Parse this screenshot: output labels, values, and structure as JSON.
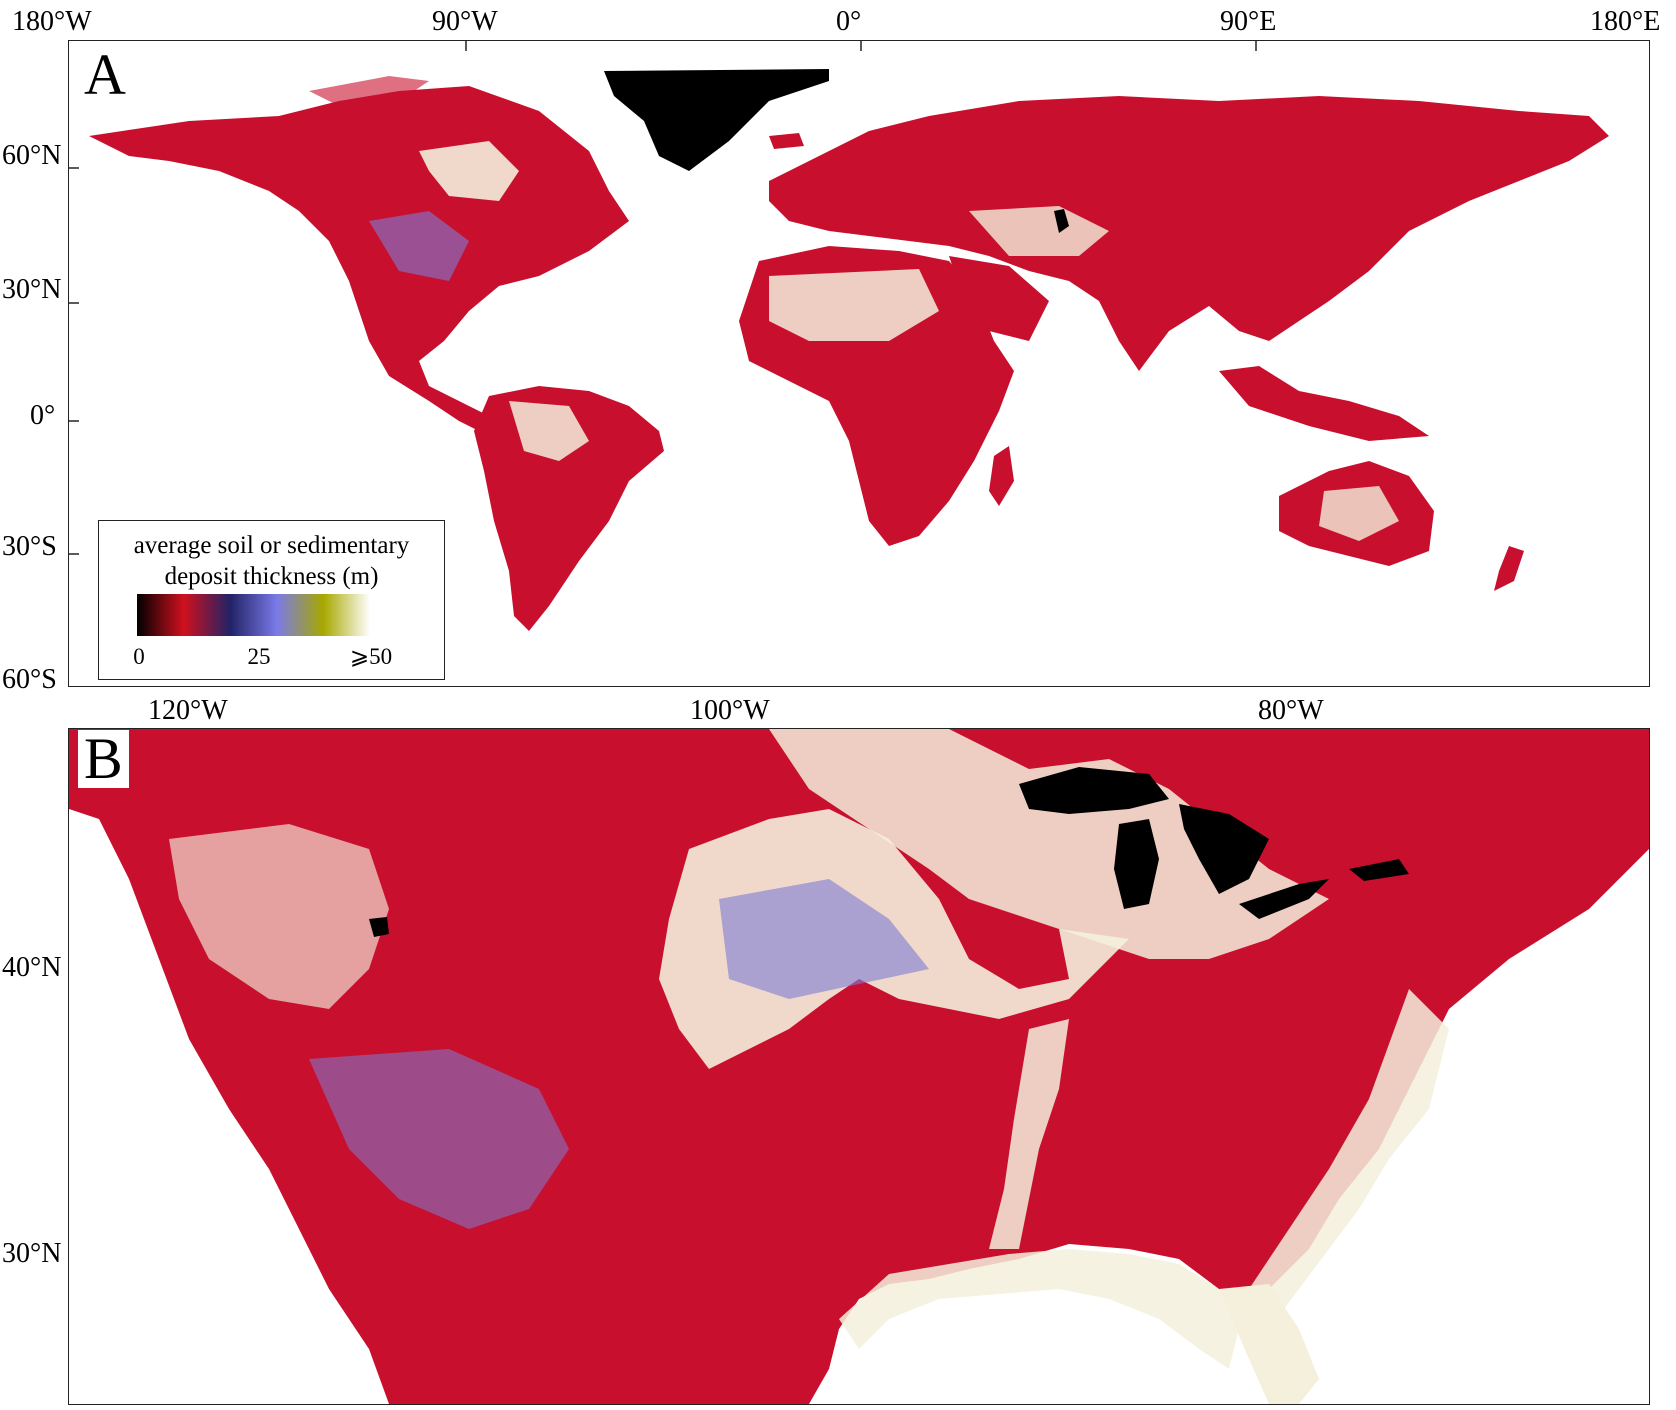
{
  "panel_a": {
    "letter": "A",
    "top_labels": [
      "180°W",
      "90°W",
      "0°",
      "90°E",
      "180°E"
    ],
    "left_labels": [
      "60°N",
      "30°N",
      "0°",
      "30°S",
      "60°S"
    ]
  },
  "panel_b": {
    "letter": "B",
    "top_labels": [
      "120°W",
      "100°W",
      "80°W"
    ],
    "left_labels": [
      "40°N",
      "30°N"
    ]
  },
  "legend": {
    "title_line1": "average soil or sedimentary",
    "title_line2": "deposit thickness (m)",
    "tick_labels": [
      "0",
      "25",
      "⩾50"
    ],
    "colors": [
      "#000000",
      "#d0101e",
      "#222266",
      "#7a7ae8",
      "#a8a800",
      "#ffffff"
    ]
  },
  "colors": {
    "thin_soil": "#c8102e",
    "medium": "#7b7bd6",
    "thick": "#f4f0dc",
    "water_ice": "#000000"
  }
}
